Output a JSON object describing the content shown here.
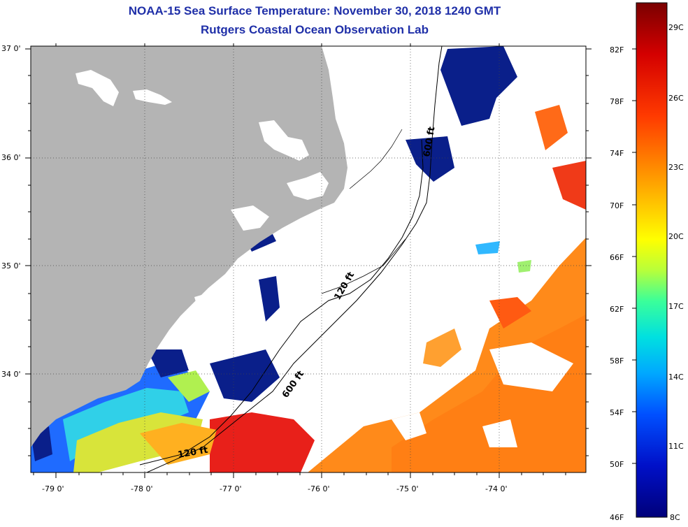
{
  "header": {
    "title": "NOAA-15 Sea Surface Temperature:  November 30, 2018 1240 GMT",
    "subtitle": "Rutgers Coastal Ocean Observation Lab"
  },
  "map": {
    "lat_labels": [
      "37 0'",
      "36 0'",
      "35 0'",
      "34 0'"
    ],
    "lon_labels": [
      "-79 0'",
      "-78 0'",
      "-77 0'",
      "-76 0'",
      "-75 0'",
      "-74 0'"
    ],
    "land_color": "#b4b4b4",
    "cloud_color": "#ffffff",
    "contours": {
      "c120_a": "120 ft",
      "c600_a": "600 ft",
      "c120_b": "120 ft",
      "c600_b": "600 ft"
    }
  },
  "colorbar": {
    "f_labels": [
      "82F",
      "78F",
      "74F",
      "70F",
      "66F",
      "62F",
      "58F",
      "54F",
      "50F",
      "46F"
    ],
    "c_labels": [
      "29C",
      "26C",
      "23C",
      "20C",
      "17C",
      "14C",
      "11C",
      "8C"
    ],
    "colors": [
      "#7a0000",
      "#d40000",
      "#ff3a00",
      "#ff8a00",
      "#ffcc00",
      "#ffff00",
      "#b8ff3a",
      "#3aff9a",
      "#00e0e0",
      "#00a8ff",
      "#0050ff",
      "#0010c8",
      "#00007a"
    ]
  }
}
